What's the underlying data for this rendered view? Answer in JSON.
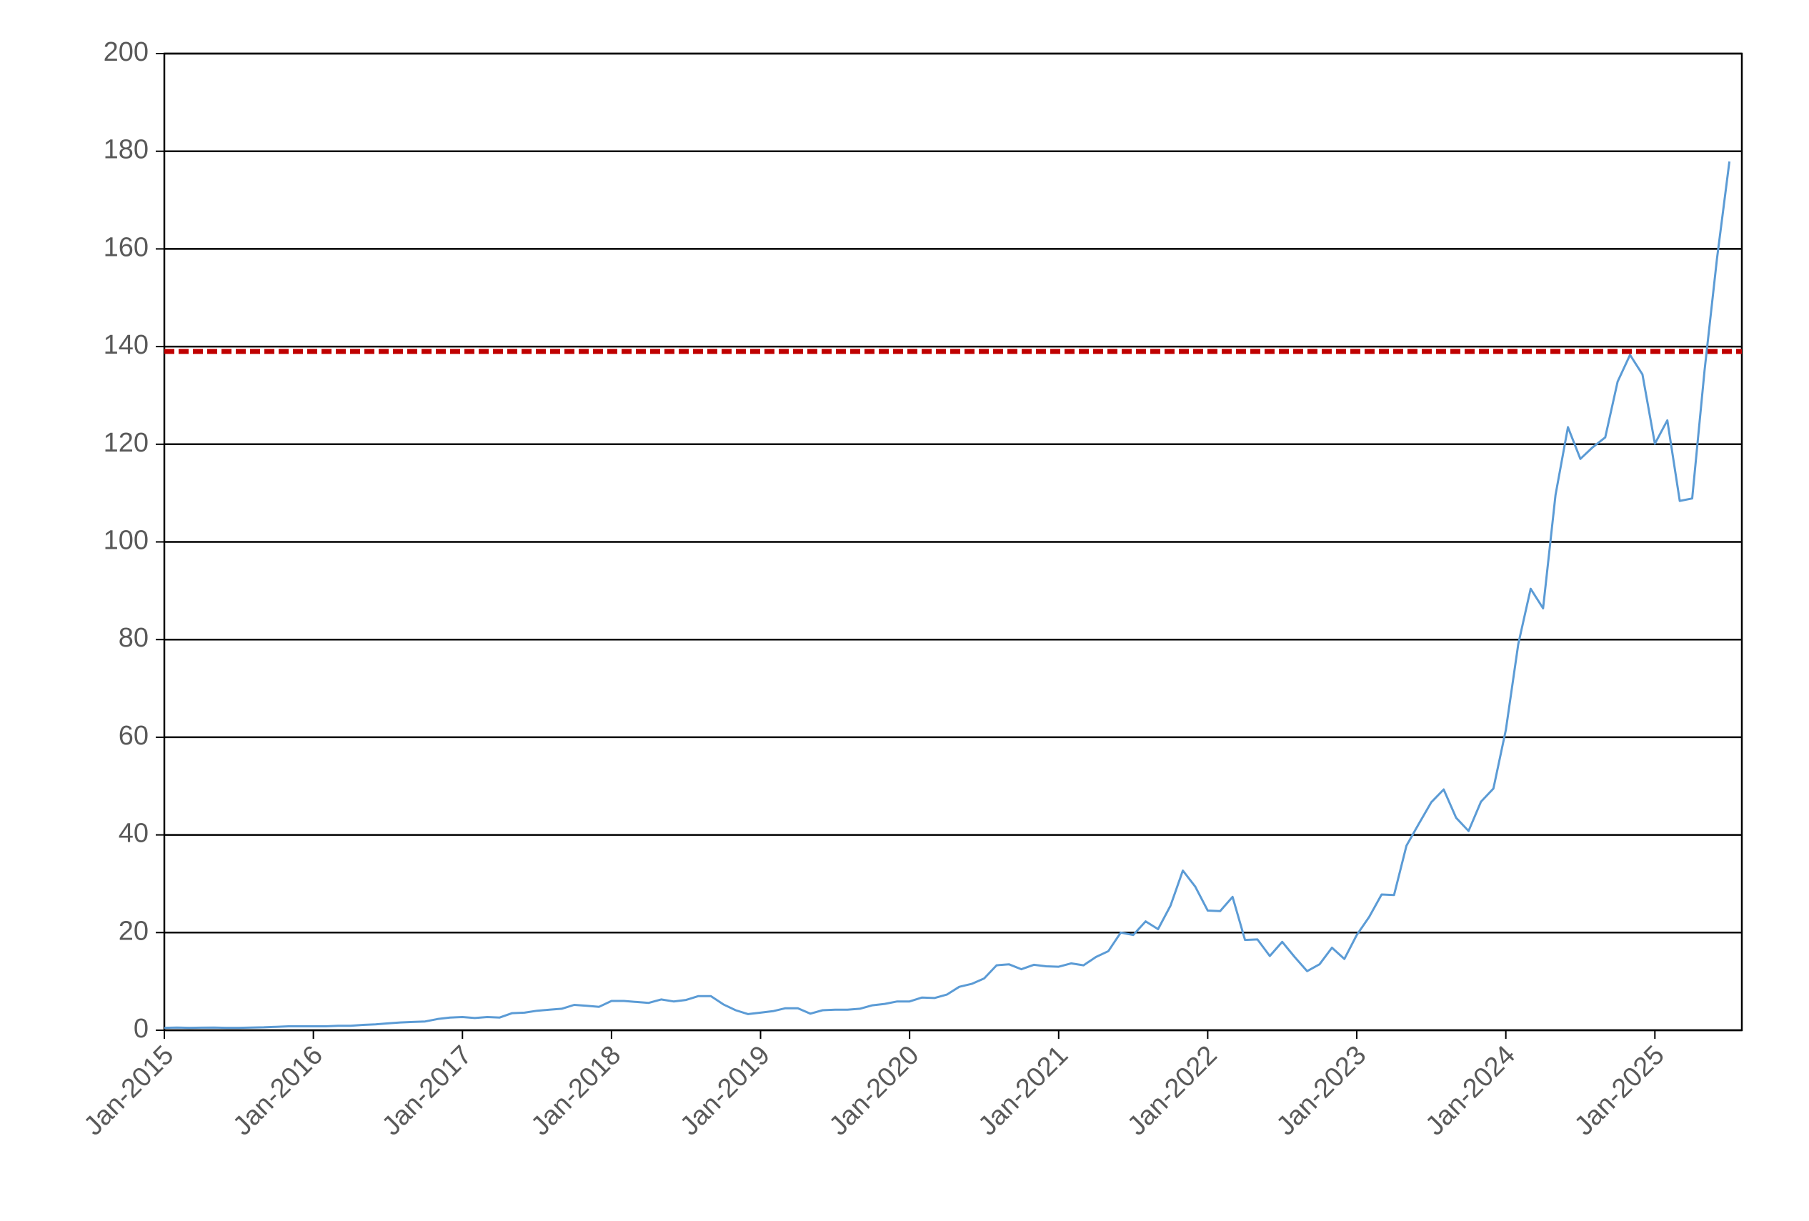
{
  "chart_data": {
    "type": "line",
    "x": [
      "2015-01",
      "2015-02",
      "2015-03",
      "2015-04",
      "2015-05",
      "2015-06",
      "2015-07",
      "2015-08",
      "2015-09",
      "2015-10",
      "2015-11",
      "2015-12",
      "2016-01",
      "2016-02",
      "2016-03",
      "2016-04",
      "2016-05",
      "2016-06",
      "2016-07",
      "2016-08",
      "2016-09",
      "2016-10",
      "2016-11",
      "2016-12",
      "2017-01",
      "2017-02",
      "2017-03",
      "2017-04",
      "2017-05",
      "2017-06",
      "2017-07",
      "2017-08",
      "2017-09",
      "2017-10",
      "2017-11",
      "2017-12",
      "2018-01",
      "2018-02",
      "2018-03",
      "2018-04",
      "2018-05",
      "2018-06",
      "2018-07",
      "2018-08",
      "2018-09",
      "2018-10",
      "2018-11",
      "2018-12",
      "2019-01",
      "2019-02",
      "2019-03",
      "2019-04",
      "2019-05",
      "2019-06",
      "2019-07",
      "2019-08",
      "2019-09",
      "2019-10",
      "2019-11",
      "2019-12",
      "2020-01",
      "2020-02",
      "2020-03",
      "2020-04",
      "2020-05",
      "2020-06",
      "2020-07",
      "2020-08",
      "2020-09",
      "2020-10",
      "2020-11",
      "2020-12",
      "2021-01",
      "2021-02",
      "2021-03",
      "2021-04",
      "2021-05",
      "2021-06",
      "2021-07",
      "2021-08",
      "2021-09",
      "2021-10",
      "2021-11",
      "2021-12",
      "2022-01",
      "2022-02",
      "2022-03",
      "2022-04",
      "2022-05",
      "2022-06",
      "2022-07",
      "2022-08",
      "2022-09",
      "2022-10",
      "2022-11",
      "2022-12",
      "2023-01",
      "2023-02",
      "2023-03",
      "2023-04",
      "2023-05",
      "2023-06",
      "2023-07",
      "2023-08",
      "2023-09",
      "2023-10",
      "2023-11",
      "2023-12",
      "2024-01",
      "2024-02",
      "2024-03",
      "2024-04",
      "2024-05",
      "2024-06",
      "2024-07",
      "2024-08",
      "2024-09",
      "2024-10",
      "2024-11",
      "2024-12",
      "2025-01",
      "2025-02",
      "2025-03",
      "2025-04",
      "2025-05",
      "2025-06",
      "2025-07"
    ],
    "values": [
      0.5,
      0.55,
      0.5,
      0.52,
      0.55,
      0.5,
      0.5,
      0.55,
      0.6,
      0.7,
      0.8,
      0.8,
      0.8,
      0.8,
      0.9,
      0.9,
      1.1,
      1.2,
      1.4,
      1.6,
      1.7,
      1.8,
      2.3,
      2.6,
      2.7,
      2.5,
      2.7,
      2.6,
      3.5,
      3.6,
      4.0,
      4.2,
      4.4,
      5.2,
      5.0,
      4.8,
      6.0,
      6.0,
      5.8,
      5.6,
      6.3,
      5.9,
      6.2,
      7.0,
      7.0,
      5.3,
      4.1,
      3.3,
      3.6,
      3.9,
      4.5,
      4.5,
      3.4,
      4.1,
      4.2,
      4.2,
      4.4,
      5.1,
      5.4,
      5.9,
      5.9,
      6.7,
      6.6,
      7.3,
      8.9,
      9.5,
      10.6,
      13.3,
      13.5,
      12.5,
      13.4,
      13.1,
      13.0,
      13.7,
      13.3,
      15.0,
      16.2,
      20.0,
      19.5,
      22.3,
      20.7,
      25.5,
      32.7,
      29.4,
      24.5,
      24.4,
      27.3,
      18.5,
      18.6,
      15.2,
      18.1,
      15.0,
      12.1,
      13.5,
      16.9,
      14.6,
      19.5,
      23.2,
      27.8,
      27.7,
      37.8,
      42.3,
      46.7,
      49.3,
      43.5,
      40.8,
      46.8,
      49.5,
      61.5,
      79.1,
      90.4,
      86.4,
      109.6,
      123.5,
      117.0,
      119.4,
      121.4,
      132.8,
      138.3,
      134.3,
      120.1,
      124.9,
      108.4,
      108.9,
      135.1,
      158.0,
      177.9
    ],
    "color": "#5b9bd5",
    "xlim": [
      "2015-01",
      "2025-08"
    ],
    "xticks": [
      {
        "value": "2015-01",
        "label": "Jan-2015"
      },
      {
        "value": "2016-01",
        "label": "Jan-2016"
      },
      {
        "value": "2017-01",
        "label": "Jan-2017"
      },
      {
        "value": "2018-01",
        "label": "Jan-2018"
      },
      {
        "value": "2019-01",
        "label": "Jan-2019"
      },
      {
        "value": "2020-01",
        "label": "Jan-2020"
      },
      {
        "value": "2021-01",
        "label": "Jan-2021"
      },
      {
        "value": "2022-01",
        "label": "Jan-2022"
      },
      {
        "value": "2023-01",
        "label": "Jan-2023"
      },
      {
        "value": "2024-01",
        "label": "Jan-2024"
      },
      {
        "value": "2025-01",
        "label": "Jan-2025"
      }
    ],
    "ylim": [
      0,
      200
    ],
    "yticks": [
      0,
      20,
      40,
      60,
      80,
      100,
      120,
      140,
      160,
      180,
      200
    ],
    "grid": true,
    "hline": {
      "value": 139,
      "color": "#c00000"
    }
  }
}
